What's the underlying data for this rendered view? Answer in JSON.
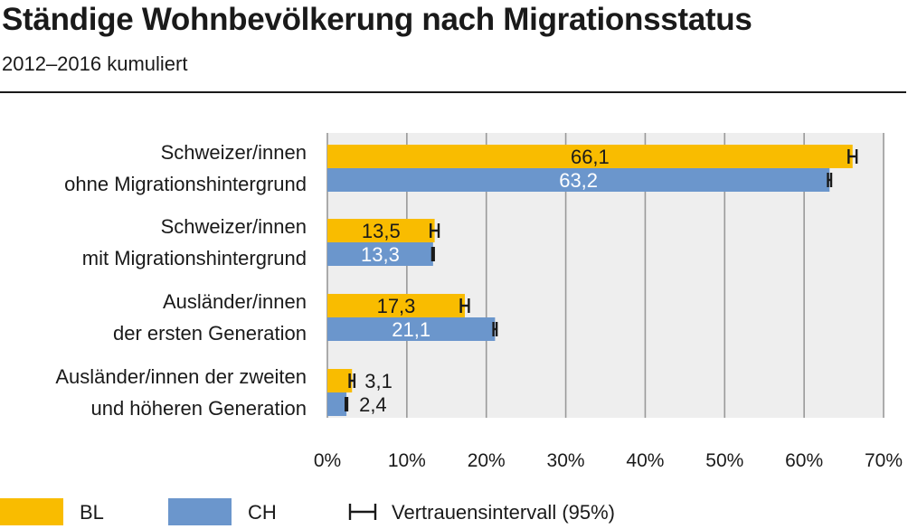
{
  "title": "Ständige Wohnbevölkerung nach Migrationsstatus",
  "subtitle": "2012–2016 kumuliert",
  "colors": {
    "BL": "#f9bc00",
    "CH": "#6b96cc",
    "plot_bg": "#eeeeee",
    "grid": "#9a9a9a",
    "ci": "#1a1a1a"
  },
  "chart_data": {
    "type": "bar",
    "orientation": "horizontal",
    "categories": [
      [
        "Schweizer/innen",
        "ohne Migrationshintergrund"
      ],
      [
        "Schweizer/innen",
        "mit Migrationshintergrund"
      ],
      [
        "Ausländer/innen",
        "der ersten Generation"
      ],
      [
        "Ausländer/innen der zweiten",
        "und höheren Generation"
      ]
    ],
    "series": [
      {
        "name": "BL",
        "values": [
          66.1,
          13.5,
          17.3,
          3.1
        ],
        "labels": [
          "66,1",
          "13,5",
          "17,3",
          "3,1"
        ],
        "ci_half_width": [
          0.5,
          0.5,
          0.5,
          0.3
        ]
      },
      {
        "name": "CH",
        "values": [
          63.2,
          13.3,
          21.1,
          2.4
        ],
        "labels": [
          "63,2",
          "13,3",
          "21,1",
          "2,4"
        ],
        "ci_half_width": [
          0.2,
          0.1,
          0.2,
          0.1
        ]
      }
    ],
    "xlim": [
      0,
      70
    ],
    "xticks": [
      0,
      10,
      20,
      30,
      40,
      50,
      60,
      70
    ],
    "xtick_labels": [
      "0%",
      "10%",
      "20%",
      "30%",
      "40%",
      "50%",
      "60%",
      "70%"
    ],
    "grid": true,
    "legend": {
      "placement": "bottom",
      "ci_label": "Vertrauensintervall (95%)"
    }
  }
}
